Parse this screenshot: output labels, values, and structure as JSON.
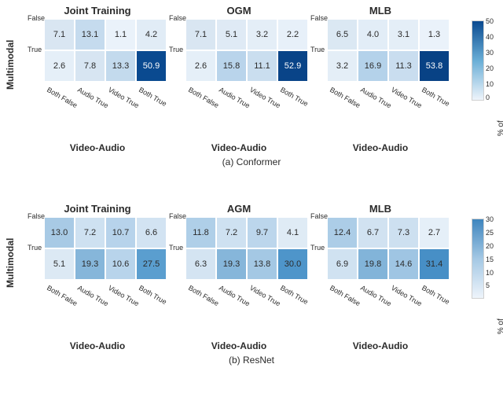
{
  "subfigs": [
    {
      "key": "a",
      "caption": "(a) Conformer",
      "panels": [
        {
          "title": "Joint Training",
          "cells": [
            7.1,
            13.1,
            1.1,
            4.2,
            2.6,
            7.8,
            13.3,
            50.9
          ],
          "colors": [
            "#d9e6f2",
            "#c5dbee",
            "#eaf2fa",
            "#e1ecf6",
            "#e5eff8",
            "#d7e5f2",
            "#c3daed",
            "#0a4a90"
          ],
          "textcolors": [
            "#2b2b2b",
            "#2b2b2b",
            "#2b2b2b",
            "#2b2b2b",
            "#2b2b2b",
            "#2b2b2b",
            "#2b2b2b",
            "#ffffff"
          ]
        },
        {
          "title": "OGM",
          "cells": [
            7.1,
            5.1,
            3.2,
            2.2,
            2.6,
            15.8,
            11.1,
            52.9
          ],
          "colors": [
            "#d9e6f2",
            "#dfeaf5",
            "#e4eef7",
            "#e7f0f9",
            "#e5eff8",
            "#b9d4eb",
            "#cadeef",
            "#094488"
          ],
          "textcolors": [
            "#2b2b2b",
            "#2b2b2b",
            "#2b2b2b",
            "#2b2b2b",
            "#2b2b2b",
            "#2b2b2b",
            "#2b2b2b",
            "#ffffff"
          ]
        },
        {
          "title": "MLB",
          "cells": [
            6.5,
            4.0,
            3.1,
            1.3,
            3.2,
            16.9,
            11.3,
            53.8
          ],
          "colors": [
            "#dbe8f3",
            "#e2edf7",
            "#e4eef7",
            "#eaf2fa",
            "#e4eef7",
            "#b4d2ea",
            "#c9ddef",
            "#084285"
          ],
          "textcolors": [
            "#2b2b2b",
            "#2b2b2b",
            "#2b2b2b",
            "#2b2b2b",
            "#2b2b2b",
            "#2b2b2b",
            "#2b2b2b",
            "#ffffff"
          ]
        }
      ]
    },
    {
      "key": "b",
      "caption": "(b) ResNet",
      "panels": [
        {
          "title": "Joint Training",
          "cells": [
            13.0,
            7.2,
            10.7,
            6.6,
            5.1,
            19.3,
            10.6,
            27.5
          ],
          "colors": [
            "#a8cae5",
            "#cee1f1",
            "#b7d3eb",
            "#d2e3f2",
            "#dce9f4",
            "#86b6da",
            "#b8d4eb",
            "#5a9ecf"
          ],
          "textcolors": [
            "#2b2b2b",
            "#2b2b2b",
            "#2b2b2b",
            "#2b2b2b",
            "#2b2b2b",
            "#2b2b2b",
            "#2b2b2b",
            "#2b2b2b"
          ]
        },
        {
          "title": "AGM",
          "cells": [
            11.8,
            7.2,
            9.7,
            4.1,
            6.3,
            19.3,
            13.8,
            30.0
          ],
          "colors": [
            "#afcfe8",
            "#cee1f1",
            "#bcd6ec",
            "#dfebf5",
            "#d4e4f2",
            "#86b6da",
            "#a4c8e4",
            "#4e95ca"
          ],
          "textcolors": [
            "#2b2b2b",
            "#2b2b2b",
            "#2b2b2b",
            "#2b2b2b",
            "#2b2b2b",
            "#2b2b2b",
            "#2b2b2b",
            "#2b2b2b"
          ]
        },
        {
          "title": "MLB",
          "cells": [
            12.4,
            6.7,
            7.3,
            2.7,
            6.9,
            19.8,
            14.6,
            31.4
          ],
          "colors": [
            "#accde7",
            "#d1e2f1",
            "#cde0f0",
            "#e5eff8",
            "#d0e2f1",
            "#82b4d9",
            "#9fc5e3",
            "#478fc6"
          ],
          "textcolors": [
            "#2b2b2b",
            "#2b2b2b",
            "#2b2b2b",
            "#2b2b2b",
            "#2b2b2b",
            "#2b2b2b",
            "#2b2b2b",
            "#2b2b2b"
          ]
        }
      ]
    }
  ],
  "xticks": [
    "Both False",
    "Audio True",
    "Video True",
    "Both True"
  ],
  "yticks": [
    "False",
    "True"
  ],
  "xlabel": "Video-Audio",
  "ylabel": "Multimodal",
  "colorbar": {
    "label": "% of samples",
    "ticks": [
      50,
      40,
      30,
      20,
      10,
      0
    ]
  }
}
